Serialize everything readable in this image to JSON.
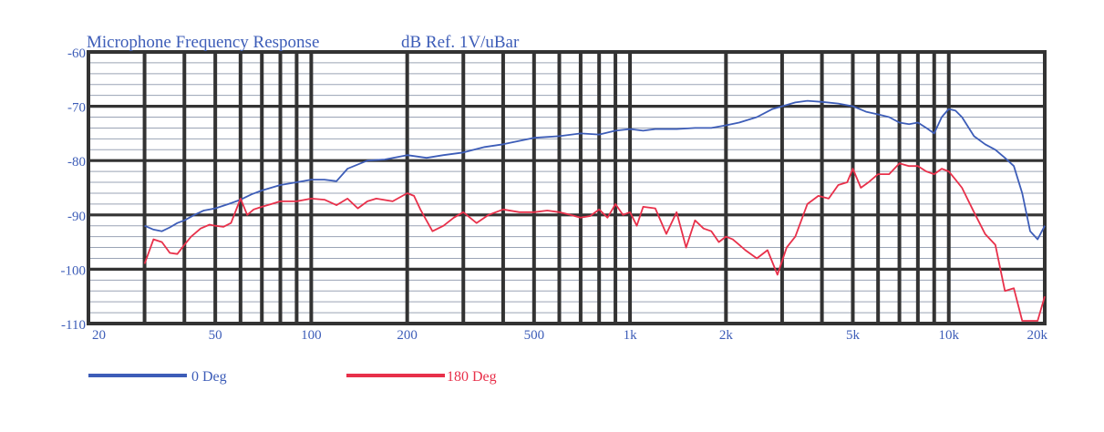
{
  "chart_data": {
    "type": "line",
    "title": "Microphone Frequency Response",
    "subtitle": "dB Ref. 1V/uBar",
    "x_scale": "log",
    "xlim": [
      20,
      20000
    ],
    "ylim": [
      -110,
      -60
    ],
    "grid": true,
    "legend_position": "bottom-left",
    "x_ticks": [
      {
        "value": 20,
        "label": "20"
      },
      {
        "value": 50,
        "label": "50"
      },
      {
        "value": 100,
        "label": "100"
      },
      {
        "value": 200,
        "label": "200"
      },
      {
        "value": 500,
        "label": "500"
      },
      {
        "value": 1000,
        "label": "1k"
      },
      {
        "value": 2000,
        "label": "2k"
      },
      {
        "value": 5000,
        "label": "5k"
      },
      {
        "value": 10000,
        "label": "10k"
      },
      {
        "value": 20000,
        "label": "20k"
      }
    ],
    "y_ticks": [
      {
        "value": -60,
        "label": "-60"
      },
      {
        "value": -70,
        "label": "-70"
      },
      {
        "value": -80,
        "label": "-80"
      },
      {
        "value": -90,
        "label": "-90"
      },
      {
        "value": -100,
        "label": "-100"
      },
      {
        "value": -110,
        "label": "-110"
      }
    ],
    "series": [
      {
        "name": "0 Deg",
        "color": "#3d5db8",
        "x": [
          30,
          32,
          34,
          36,
          38,
          40,
          43,
          46,
          50,
          55,
          60,
          65,
          70,
          80,
          90,
          100,
          110,
          120,
          130,
          150,
          170,
          200,
          230,
          260,
          300,
          350,
          400,
          500,
          600,
          700,
          800,
          900,
          1000,
          1100,
          1200,
          1400,
          1600,
          1800,
          2000,
          2200,
          2500,
          2800,
          3000,
          3300,
          3600,
          4000,
          4500,
          5000,
          5500,
          6000,
          6500,
          7000,
          7500,
          8000,
          8500,
          9000,
          9500,
          10000,
          10500,
          11000,
          12000,
          13000,
          14000,
          15000,
          16000,
          17000,
          18000,
          19000,
          20000
        ],
        "y": [
          -92,
          -92.7,
          -93,
          -92.3,
          -91.5,
          -91,
          -90,
          -89.2,
          -88.8,
          -88,
          -87.2,
          -86.2,
          -85.5,
          -84.5,
          -84,
          -83.5,
          -83.5,
          -83.8,
          -81.5,
          -80,
          -79.8,
          -79,
          -79.5,
          -79,
          -78.5,
          -77.5,
          -77,
          -75.8,
          -75.5,
          -75,
          -75.2,
          -74.5,
          -74.2,
          -74.5,
          -74.2,
          -74.2,
          -74,
          -74,
          -73.5,
          -73,
          -72,
          -70.5,
          -70,
          -69.3,
          -69,
          -69.2,
          -69.5,
          -70,
          -71,
          -71.5,
          -72,
          -73,
          -73.3,
          -73,
          -74,
          -75,
          -72,
          -70.5,
          -70.8,
          -72,
          -75.5,
          -77,
          -78,
          -79.5,
          -81,
          -86,
          -93,
          -94.5,
          -92
        ]
      },
      {
        "name": "180 Deg",
        "color": "#e8304a",
        "x": [
          30,
          32,
          34,
          36,
          38,
          40,
          42,
          45,
          48,
          50,
          53,
          56,
          60,
          63,
          66,
          70,
          75,
          80,
          90,
          100,
          110,
          120,
          130,
          140,
          150,
          160,
          180,
          200,
          210,
          220,
          240,
          260,
          280,
          300,
          330,
          360,
          400,
          450,
          500,
          550,
          600,
          650,
          700,
          750,
          800,
          850,
          900,
          950,
          1000,
          1050,
          1100,
          1200,
          1300,
          1400,
          1500,
          1600,
          1700,
          1800,
          1900,
          2000,
          2100,
          2200,
          2300,
          2500,
          2700,
          2900,
          3100,
          3300,
          3600,
          3900,
          4200,
          4500,
          4800,
          5000,
          5300,
          5600,
          6000,
          6500,
          7000,
          7500,
          8000,
          8500,
          9000,
          9500,
          10000,
          10500,
          11000,
          12000,
          13000,
          14000,
          15000,
          16000,
          17000,
          18000,
          19000,
          20000
        ],
        "y": [
          -99,
          -94.5,
          -95,
          -97,
          -97.2,
          -95.5,
          -94,
          -92.5,
          -91.8,
          -92,
          -92.2,
          -91.5,
          -87,
          -90,
          -89,
          -88.5,
          -88,
          -87.5,
          -87.5,
          -87,
          -87.2,
          -88.2,
          -87,
          -88.8,
          -87.5,
          -87,
          -87.5,
          -86,
          -86.5,
          -89,
          -93,
          -92,
          -90.5,
          -89.5,
          -91.5,
          -90,
          -89,
          -89.5,
          -89.5,
          -89.2,
          -89.5,
          -90,
          -90.5,
          -90.2,
          -89,
          -90.5,
          -88,
          -90,
          -89.5,
          -92,
          -88.5,
          -88.8,
          -93.5,
          -89.5,
          -96,
          -91,
          -92.5,
          -93,
          -95,
          -94,
          -94.5,
          -95.5,
          -96.5,
          -98,
          -96.5,
          -101,
          -96,
          -94,
          -88,
          -86.5,
          -87,
          -84.5,
          -84,
          -81.5,
          -85,
          -84,
          -82.5,
          -82.5,
          -80.5,
          -81,
          -81,
          -82,
          -82.5,
          -81.5,
          -82,
          -83.5,
          -85,
          -89.5,
          -93.5,
          -95.5,
          -104,
          -103.5,
          -109.5,
          -109.5,
          -109.5,
          -105
        ]
      }
    ]
  }
}
